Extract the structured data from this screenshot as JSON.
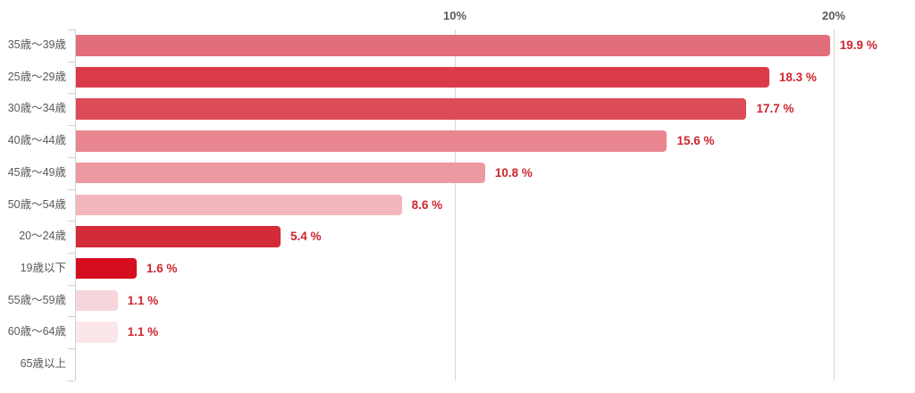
{
  "chart_data": {
    "type": "bar",
    "orientation": "horizontal",
    "title": "",
    "xlabel": "",
    "ylabel": "",
    "categories": [
      "35歳〜39歳",
      "25歳〜29歳",
      "30歳〜34歳",
      "40歳〜44歳",
      "45歳〜49歳",
      "50歳〜54歳",
      "20〜24歳",
      "19歳以下",
      "55歳〜59歳",
      "60歳〜64歳",
      "65歳以上"
    ],
    "values": [
      19.9,
      18.3,
      17.7,
      15.6,
      10.8,
      8.6,
      5.4,
      1.6,
      1.1,
      1.1,
      0
    ],
    "value_labels": [
      "19.9 %",
      "18.3 %",
      "17.7 %",
      "15.6 %",
      "10.8 %",
      "8.6 %",
      "5.4 %",
      "1.6 %",
      "1.1 %",
      "1.1 %",
      ""
    ],
    "bar_colors": [
      "#e26e79",
      "#da3b49",
      "#dc4b58",
      "#e9868f",
      "#ed99a1",
      "#f2b6bc",
      "#d32b38",
      "#d60d1f",
      "#f6d6da",
      "#fbe7ea",
      "transparent"
    ],
    "xlim": [
      0,
      22
    ],
    "x_ticks": [
      {
        "value": 10,
        "label": "10%"
      },
      {
        "value": 20,
        "label": "20%"
      }
    ],
    "legend": "none",
    "grid": "vertical-gridlines-at-ticks",
    "colors": {
      "value_label": "#ce252f",
      "tick_label": "#595959",
      "category_label": "#595959",
      "gridline": "#d6d6d6",
      "axis_line": "#c9d2dc",
      "background": "#ffffff"
    }
  }
}
